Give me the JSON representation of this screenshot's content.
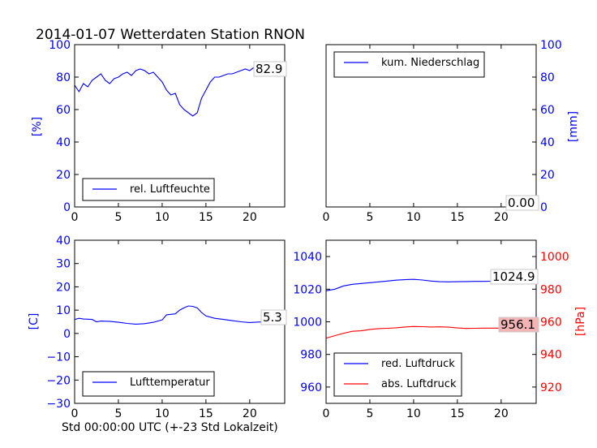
{
  "title": "2014-01-07 Wetterdaten Station RNON",
  "xlabel": "Std 00:00:00 UTC (+-23 Std Lokalzeit)",
  "colors": {
    "blue": "#0000ff",
    "red": "#ff0000",
    "black": "#000000"
  },
  "chart_data": [
    {
      "id": "humidity",
      "type": "line",
      "xlim": [
        0,
        24
      ],
      "ylim": [
        0,
        100
      ],
      "x_ticks": [
        "0",
        "5",
        "10",
        "15",
        "20"
      ],
      "y_ticks": [
        "0",
        "20",
        "40",
        "60",
        "80",
        "100"
      ],
      "ylabel": "[%]",
      "legend": {
        "label": "rel. Luftfeuchte",
        "position": "lower-left"
      },
      "annotation": "82.9",
      "series": [
        {
          "name": "rel. Luftfeuchte",
          "color": "#0000ff",
          "points": [
            [
              0,
              75
            ],
            [
              0.5,
              71
            ],
            [
              1,
              76
            ],
            [
              1.5,
              74
            ],
            [
              2,
              78
            ],
            [
              2.5,
              80
            ],
            [
              3,
              82
            ],
            [
              3.5,
              78
            ],
            [
              4,
              76
            ],
            [
              4.5,
              79
            ],
            [
              5,
              80
            ],
            [
              5.5,
              82
            ],
            [
              6,
              83
            ],
            [
              6.5,
              81
            ],
            [
              7,
              84
            ],
            [
              7.5,
              85
            ],
            [
              8,
              84
            ],
            [
              8.5,
              82
            ],
            [
              9,
              83
            ],
            [
              9.5,
              80
            ],
            [
              10,
              77
            ],
            [
              10.5,
              72
            ],
            [
              11,
              69
            ],
            [
              11.5,
              70
            ],
            [
              12,
              63
            ],
            [
              12.5,
              60
            ],
            [
              13,
              58
            ],
            [
              13.5,
              56
            ],
            [
              14,
              58
            ],
            [
              14.5,
              67
            ],
            [
              15,
              72
            ],
            [
              15.5,
              77
            ],
            [
              16,
              80
            ],
            [
              16.5,
              80
            ],
            [
              17,
              81
            ],
            [
              17.5,
              82
            ],
            [
              18,
              82
            ],
            [
              18.5,
              83
            ],
            [
              19,
              84
            ],
            [
              19.5,
              85
            ],
            [
              20,
              84
            ],
            [
              20.5,
              86
            ],
            [
              21,
              85
            ],
            [
              21.5,
              84
            ],
            [
              22,
              85
            ],
            [
              22.5,
              83
            ],
            [
              23,
              82
            ],
            [
              23.5,
              83
            ],
            [
              24,
              83
            ]
          ]
        }
      ]
    },
    {
      "id": "precipitation",
      "type": "line",
      "xlim": [
        0,
        24
      ],
      "ylim": [
        0,
        100
      ],
      "x_ticks": [
        "0",
        "5",
        "10",
        "15",
        "20"
      ],
      "y_ticks": [
        "0",
        "20",
        "40",
        "60",
        "80",
        "100"
      ],
      "ylabel": "[mm]",
      "legend": {
        "label": "kum. Niederschlag",
        "position": "upper-left"
      },
      "annotation": "0.00",
      "series": [
        {
          "name": "kum. Niederschlag",
          "color": "#0000ff",
          "points": [
            [
              0,
              0
            ],
            [
              24,
              0
            ]
          ]
        }
      ]
    },
    {
      "id": "temperature",
      "type": "line",
      "xlim": [
        0,
        24
      ],
      "ylim": [
        -30,
        40
      ],
      "x_ticks": [
        "0",
        "5",
        "10",
        "15",
        "20"
      ],
      "y_ticks": [
        "−30",
        "−20",
        "−10",
        "0",
        "10",
        "20",
        "30",
        "40"
      ],
      "ylabel": "[C]",
      "legend": {
        "label": "Lufttemperatur",
        "position": "lower-left"
      },
      "annotation": "5.3",
      "series": [
        {
          "name": "Lufttemperatur",
          "color": "#0000ff",
          "points": [
            [
              0,
              6
            ],
            [
              0.5,
              6.5
            ],
            [
              1,
              6.2
            ],
            [
              2,
              6
            ],
            [
              2.5,
              5
            ],
            [
              3,
              5.3
            ],
            [
              4,
              5.2
            ],
            [
              5,
              4.8
            ],
            [
              6,
              4.3
            ],
            [
              7,
              4
            ],
            [
              8,
              4.2
            ],
            [
              9,
              4.8
            ],
            [
              10,
              5.8
            ],
            [
              10.5,
              8
            ],
            [
              11,
              8.2
            ],
            [
              11.5,
              8.4
            ],
            [
              12,
              10
            ],
            [
              12.5,
              11
            ],
            [
              13,
              11.8
            ],
            [
              13.5,
              11.6
            ],
            [
              14,
              11
            ],
            [
              14.5,
              9
            ],
            [
              15,
              7.5
            ],
            [
              16,
              6.5
            ],
            [
              17,
              6
            ],
            [
              18,
              5.5
            ],
            [
              19,
              5
            ],
            [
              20,
              4.7
            ],
            [
              21,
              4.9
            ],
            [
              22,
              5
            ],
            [
              23,
              5.2
            ],
            [
              24,
              5.3
            ]
          ]
        }
      ]
    },
    {
      "id": "pressure",
      "type": "line",
      "xlim": [
        0,
        24
      ],
      "ylim": [
        950,
        1050
      ],
      "ylim_right": [
        910,
        1010
      ],
      "x_ticks": [
        "0",
        "5",
        "10",
        "15",
        "20"
      ],
      "y_ticks": [
        "960",
        "980",
        "1000",
        "1020",
        "1040"
      ],
      "y_ticks_right": [
        "920",
        "940",
        "960",
        "980",
        "1000"
      ],
      "ylabel": "[hPa]",
      "legend": {
        "labels": [
          "red. Luftdruck",
          "abs. Luftdruck"
        ],
        "position": "lower-left"
      },
      "annotations": [
        "1024.9",
        "956.1"
      ],
      "series": [
        {
          "name": "red. Luftdruck",
          "color": "#0000ff",
          "axis": "left",
          "points": [
            [
              0,
              1019
            ],
            [
              1,
              1020
            ],
            [
              2,
              1022
            ],
            [
              3,
              1023
            ],
            [
              4,
              1023.5
            ],
            [
              5,
              1024
            ],
            [
              6,
              1024.5
            ],
            [
              7,
              1025
            ],
            [
              8,
              1025.5
            ],
            [
              9,
              1025.8
            ],
            [
              10,
              1026
            ],
            [
              11,
              1025.6
            ],
            [
              12,
              1025
            ],
            [
              13,
              1024.6
            ],
            [
              14,
              1024.5
            ],
            [
              15,
              1024.6
            ],
            [
              16,
              1024.7
            ],
            [
              17,
              1024.8
            ],
            [
              18,
              1024.8
            ],
            [
              19,
              1024.9
            ],
            [
              20,
              1024.9
            ],
            [
              21,
              1024.9
            ],
            [
              22,
              1024.9
            ],
            [
              23,
              1024.9
            ],
            [
              24,
              1024.9
            ]
          ]
        },
        {
          "name": "abs. Luftdruck",
          "color": "#ff0000",
          "axis": "right",
          "points": [
            [
              0,
              950
            ],
            [
              1,
              951.5
            ],
            [
              2,
              953
            ],
            [
              3,
              954.2
            ],
            [
              4,
              954.5
            ],
            [
              5,
              955.3
            ],
            [
              6,
              955.8
            ],
            [
              7,
              956
            ],
            [
              8,
              956.3
            ],
            [
              9,
              956.8
            ],
            [
              10,
              957.1
            ],
            [
              11,
              957
            ],
            [
              12,
              956.8
            ],
            [
              13,
              956.9
            ],
            [
              14,
              956.7
            ],
            [
              15,
              956.2
            ],
            [
              16,
              955.9
            ],
            [
              17,
              956
            ],
            [
              18,
              956.1
            ],
            [
              19,
              956.1
            ],
            [
              20,
              956.1
            ],
            [
              21,
              956.1
            ],
            [
              22,
              956.1
            ],
            [
              23,
              956.1
            ],
            [
              24,
              956.1
            ]
          ]
        }
      ]
    }
  ]
}
